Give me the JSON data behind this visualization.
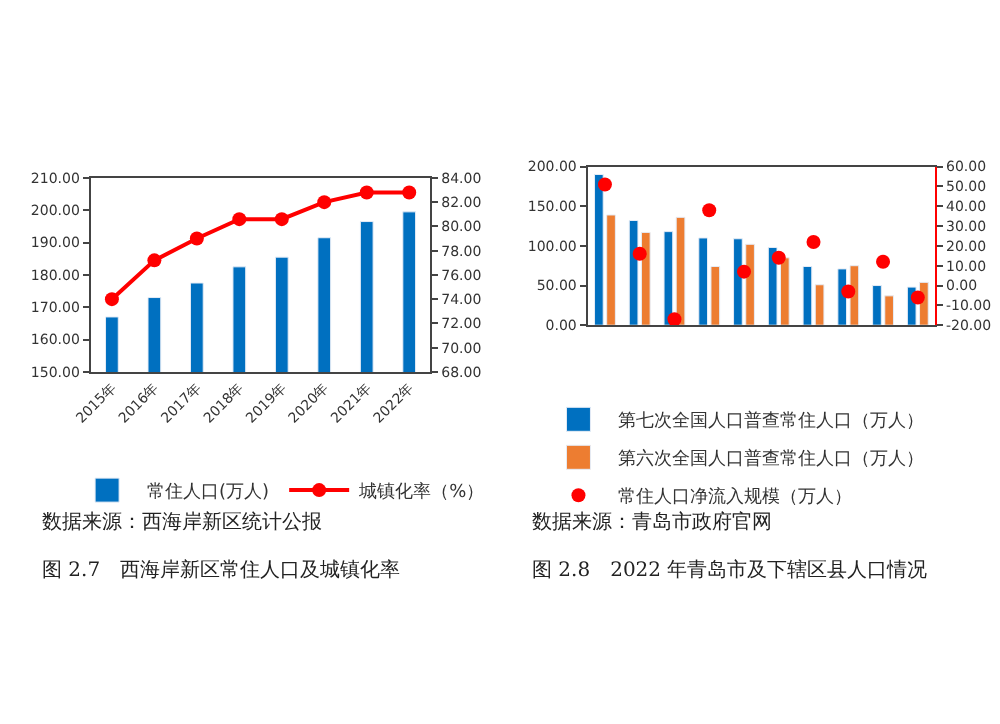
{
  "chart_data": [
    {
      "type": "bar",
      "categories": [
        "2015年",
        "2016年",
        "2017年",
        "2018年",
        "2019年",
        "2020年",
        "2021年",
        "2022年"
      ],
      "series": [
        {
          "name": "常住人口(万人)",
          "color": "#0070c0",
          "values": [
            167,
            173,
            177.5,
            182.5,
            185.5,
            191.5,
            196.5,
            199.5
          ]
        },
        {
          "name": "城镇化率（%）",
          "type": "line",
          "axis": "y2",
          "color": "#ff0000",
          "marker": "circle",
          "values": [
            74.0,
            77.2,
            79.0,
            80.6,
            80.6,
            82.0,
            82.8,
            82.8
          ]
        }
      ],
      "ylim": [
        150,
        210
      ],
      "yticks": [
        {
          "value": 150,
          "label": "150.00"
        },
        {
          "value": 160,
          "label": "160.00"
        },
        {
          "value": 170,
          "label": "170.00"
        },
        {
          "value": 180,
          "label": "180.00"
        },
        {
          "value": 190,
          "label": "190.00"
        },
        {
          "value": 200,
          "label": "200.00"
        },
        {
          "value": 210,
          "label": "210.00"
        }
      ],
      "y2lim": [
        68,
        84
      ],
      "y2ticks": [
        {
          "value": 68,
          "label": "68.00"
        },
        {
          "value": 70,
          "label": "70.00"
        },
        {
          "value": 72,
          "label": "72.00"
        },
        {
          "value": 74,
          "label": "74.00"
        },
        {
          "value": 76,
          "label": "76.00"
        },
        {
          "value": 78,
          "label": "78.00"
        },
        {
          "value": 80,
          "label": "80.00"
        },
        {
          "value": 82,
          "label": "82.00"
        },
        {
          "value": 84,
          "label": "84.00"
        }
      ],
      "legend": "bottom",
      "annotations": [
        "数据来源：西海岸新区统计公报",
        "图 2.7　西海岸新区常住人口及城镇化率"
      ]
    },
    {
      "type": "bar",
      "categories": [
        null,
        null,
        null,
        null,
        null,
        null,
        null,
        null,
        null,
        null
      ],
      "series": [
        {
          "name": "第七次全国人口普查常住人口（万人）",
          "color": "#0070c0",
          "values": [
            190,
            132,
            118,
            110,
            109,
            98,
            74,
            71,
            50,
            48
          ]
        },
        {
          "name": "第六次全国人口普查常住人口（万人）",
          "color": "#ed7d31",
          "values": [
            139,
            117,
            136,
            74,
            102,
            85,
            51,
            75,
            37,
            54
          ]
        },
        {
          "name": "常住人口净流入规模（万人）",
          "type": "scatter",
          "axis": "y2",
          "color": "#ff0000",
          "marker": "circle",
          "values": [
            51,
            16,
            -17,
            38,
            7,
            14,
            22,
            -3,
            12,
            -6
          ]
        }
      ],
      "ylim": [
        0,
        200
      ],
      "yticks": [
        {
          "value": 0,
          "label": "0.00"
        },
        {
          "value": 50,
          "label": "50.00"
        },
        {
          "value": 100,
          "label": "100.00"
        },
        {
          "value": 150,
          "label": "150.00"
        },
        {
          "value": 200,
          "label": "200.00"
        }
      ],
      "y2lim": [
        -20,
        60
      ],
      "y2ticks": [
        {
          "value": -20,
          "label": "-20.00"
        },
        {
          "value": -10,
          "label": "-10.00"
        },
        {
          "value": 0,
          "label": "0.00"
        },
        {
          "value": 10,
          "label": "10.00"
        },
        {
          "value": 20,
          "label": "20.00"
        },
        {
          "value": 30,
          "label": "30.00"
        },
        {
          "value": 40,
          "label": "40.00"
        },
        {
          "value": 50,
          "label": "50.00"
        },
        {
          "value": 60,
          "label": "60.00"
        }
      ],
      "legend": "bottom",
      "annotations": [
        "数据来源：青岛市政府官网",
        "图 2.8　2022 年青岛市及下辖区县人口情况"
      ]
    }
  ]
}
